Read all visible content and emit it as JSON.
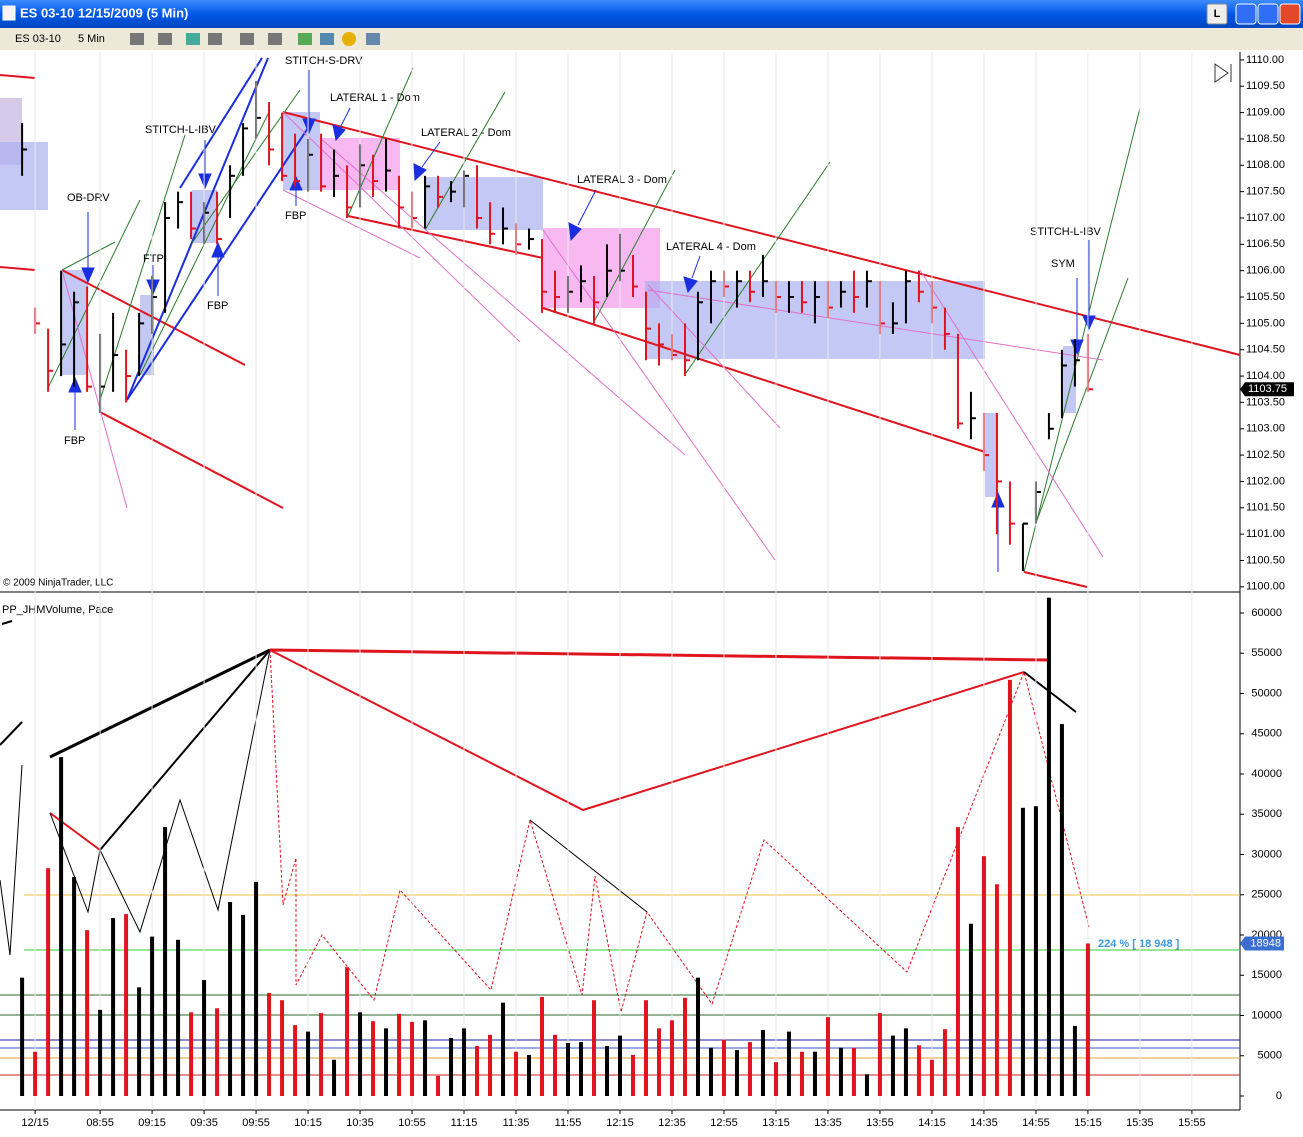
{
  "window": {
    "title": "ES 03-10  12/15/2009 (5 Min)",
    "button": "L"
  },
  "toolbar": {
    "instrument": "ES 03-10",
    "interval": "5 Min"
  },
  "chart_data": [
    {
      "type": "ohlc",
      "up_color": "#000000",
      "down_color": "#e0141e",
      "annotations": [
        "STITCH-S-DRV",
        "LATERAL 1 - Dom",
        "STITCH-L-IBV",
        "LATERAL 2 - Dom",
        "LATERAL 3 - Dom",
        "OB-DRV",
        "FBP",
        "STITCH-L-IBV",
        "LATERAL 4  - Dom",
        "FTP",
        "SYM",
        "FBP",
        "FBP",
        "© 2009 NinjaTrader, LLC"
      ],
      "x": [
        505,
        510,
        515,
        520,
        525,
        530,
        535,
        540,
        545,
        550,
        555,
        560,
        565,
        570,
        575,
        580,
        585,
        590,
        595,
        600,
        605,
        610,
        615,
        620,
        625,
        630,
        635,
        640,
        645,
        650,
        655,
        660,
        665,
        670,
        675,
        680,
        685,
        690,
        695,
        700,
        705,
        710,
        715,
        720,
        725,
        730,
        735,
        740,
        745,
        750,
        755,
        760,
        765,
        770,
        775,
        780,
        785,
        790,
        795,
        800,
        805,
        810,
        815,
        820,
        825,
        830,
        835,
        840,
        845,
        850,
        855,
        860,
        865,
        870,
        875,
        880,
        885,
        890,
        895,
        900,
        905,
        910,
        915
      ],
      "high": [
        1108.8,
        1105.3,
        1104.9,
        1106.0,
        1105.6,
        1105.7,
        1104.8,
        1105.2,
        1104.5,
        1105.2,
        1105.9,
        1107.3,
        1107.5,
        1107.5,
        1107.3,
        1107.5,
        1108.0,
        1108.8,
        1109.6,
        1109.2,
        1109.0,
        1108.6,
        1108.5,
        1108.6,
        1108.3,
        1108.0,
        1108.4,
        1108.2,
        1108.5,
        1107.8,
        1107.5,
        1107.8,
        1107.8,
        1107.7,
        1107.9,
        1108.0,
        1107.3,
        1107.2,
        1106.9,
        1106.8,
        1106.6,
        1106.0,
        1105.9,
        1106.1,
        1105.9,
        1106.5,
        1106.7,
        1106.3,
        1105.6,
        1105.0,
        1104.8,
        1105.0,
        1105.6,
        1106.0,
        1106.0,
        1106.0,
        1106.0,
        1106.3,
        1105.8,
        1105.8,
        1105.8,
        1105.8,
        1105.8,
        1105.8,
        1106.0,
        1106.0,
        1105.8,
        1105.4,
        1106.0,
        1106.0,
        1105.8,
        1105.3,
        1104.8,
        1103.7,
        1103.3,
        1103.3,
        1102.0,
        1101.2,
        1102.0,
        1103.3,
        1104.5,
        1104.7,
        1104.8
      ],
      "low": [
        1107.8,
        1104.8,
        1103.7,
        1104.0,
        1103.8,
        1103.7,
        1103.3,
        1103.7,
        1103.5,
        1104.0,
        1104.8,
        1105.2,
        1106.8,
        1106.6,
        1106.5,
        1106.5,
        1107.0,
        1107.8,
        1108.5,
        1108.0,
        1107.7,
        1107.6,
        1107.5,
        1107.5,
        1107.4,
        1107.0,
        1107.2,
        1107.4,
        1107.5,
        1106.8,
        1106.8,
        1106.8,
        1107.2,
        1107.3,
        1107.2,
        1106.8,
        1106.5,
        1106.5,
        1106.3,
        1106.4,
        1105.2,
        1105.2,
        1105.2,
        1105.4,
        1105.0,
        1105.5,
        1105.8,
        1105.5,
        1104.3,
        1104.2,
        1104.3,
        1104.0,
        1104.3,
        1105.0,
        1105.5,
        1105.3,
        1105.4,
        1105.5,
        1105.2,
        1105.2,
        1105.2,
        1105.0,
        1105.1,
        1105.3,
        1105.2,
        1105.3,
        1104.8,
        1104.8,
        1105.0,
        1105.4,
        1105.0,
        1104.5,
        1103.0,
        1102.8,
        1102.2,
        1101.0,
        1100.8,
        1100.3,
        1101.2,
        1102.8,
        1103.2,
        1103.8,
        1103.7
      ],
      "close": [
        1108.3,
        1105.0,
        1104.1,
        1104.6,
        1105.4,
        1103.8,
        1103.8,
        1104.4,
        1104.0,
        1105.0,
        1105.5,
        1107.0,
        1107.3,
        1106.8,
        1107.1,
        1106.6,
        1107.8,
        1108.7,
        1108.9,
        1108.3,
        1107.8,
        1107.7,
        1108.2,
        1107.6,
        1107.8,
        1107.2,
        1108.0,
        1107.7,
        1107.9,
        1107.2,
        1107.0,
        1107.6,
        1107.4,
        1107.5,
        1107.8,
        1107.0,
        1106.7,
        1106.8,
        1106.5,
        1106.6,
        1105.6,
        1105.5,
        1105.6,
        1105.8,
        1105.4,
        1106.0,
        1106.0,
        1105.7,
        1104.9,
        1104.6,
        1104.4,
        1104.3,
        1105.4,
        1105.8,
        1105.7,
        1105.8,
        1105.6,
        1105.8,
        1105.5,
        1105.5,
        1105.4,
        1105.5,
        1105.3,
        1105.6,
        1105.5,
        1105.8,
        1105.0,
        1105.0,
        1105.8,
        1105.6,
        1105.3,
        1104.8,
        1103.1,
        1103.2,
        1102.5,
        1102.0,
        1101.2,
        1101.2,
        1101.8,
        1103.0,
        1104.2,
        1104.3,
        1103.75
      ],
      "xlim": [
        496.5,
        973.5
      ],
      "ylim": [
        1099.94,
        1110.15
      ],
      "yticks": [
        {
          "value": 1100,
          "label": "1100.00"
        },
        {
          "value": 1100.5,
          "label": "1100.50"
        },
        {
          "value": 1101,
          "label": "1101.00"
        },
        {
          "value": 1101.5,
          "label": "1101.50"
        },
        {
          "value": 1102,
          "label": "1102.00"
        },
        {
          "value": 1102.5,
          "label": "1102.50"
        },
        {
          "value": 1103,
          "label": "1103.00"
        },
        {
          "value": 1103.5,
          "label": "1103.50"
        },
        {
          "value": 1104,
          "label": "1104.00"
        },
        {
          "value": 1104.5,
          "label": "1104.50"
        },
        {
          "value": 1105,
          "label": "1105.00"
        },
        {
          "value": 1105.5,
          "label": "1105.50"
        },
        {
          "value": 1106,
          "label": "1106.00"
        },
        {
          "value": 1106.5,
          "label": "1106.50"
        },
        {
          "value": 1107,
          "label": "1107.00"
        },
        {
          "value": 1107.5,
          "label": "1107.50"
        },
        {
          "value": 1108,
          "label": "1108.00"
        },
        {
          "value": 1108.5,
          "label": "1108.50"
        },
        {
          "value": 1109,
          "label": "1109.00"
        },
        {
          "value": 1109.5,
          "label": "1109.50"
        },
        {
          "value": 1110,
          "label": "1110.00"
        }
      ]
    },
    {
      "type": "bar",
      "title": "PP_JHMVolume, Pace",
      "annotation": "224 % [ 18 948 ]",
      "up_color": "#000000",
      "down_color": "#e0141e",
      "x": [
        505,
        510,
        515,
        520,
        525,
        530,
        535,
        540,
        545,
        550,
        555,
        560,
        565,
        570,
        575,
        580,
        585,
        590,
        595,
        600,
        605,
        610,
        615,
        620,
        625,
        630,
        635,
        640,
        645,
        650,
        655,
        660,
        665,
        670,
        675,
        680,
        685,
        690,
        695,
        700,
        705,
        710,
        715,
        720,
        725,
        730,
        735,
        740,
        745,
        750,
        755,
        760,
        765,
        770,
        775,
        780,
        785,
        790,
        795,
        800,
        805,
        810,
        815,
        820,
        825,
        830,
        835,
        840,
        845,
        850,
        855,
        860,
        865,
        870,
        875,
        880,
        885,
        890,
        895,
        900,
        905,
        910,
        915
      ],
      "values": [
        14700,
        5500,
        28300,
        42100,
        27200,
        20600,
        10700,
        22100,
        22600,
        13500,
        19800,
        33400,
        19400,
        10400,
        14400,
        10900,
        24100,
        22500,
        26600,
        12800,
        11900,
        8800,
        8000,
        10300,
        4500,
        16000,
        10400,
        9300,
        8400,
        10200,
        9200,
        9400,
        2500,
        7200,
        8400,
        6200,
        7600,
        11600,
        5500,
        5100,
        12300,
        7600,
        6600,
        6700,
        11900,
        6200,
        7500,
        5100,
        11900,
        8400,
        9400,
        12200,
        14700,
        6000,
        7000,
        5700,
        6700,
        8200,
        4200,
        8000,
        5500,
        5500,
        9800,
        6000,
        6000,
        2700,
        10300,
        7500,
        8400,
        6300,
        4500,
        8300,
        33400,
        21400,
        29800,
        26300,
        51700,
        35800,
        36000,
        61900,
        46200,
        8700,
        18948
      ],
      "xlim": [
        496.5,
        973.5
      ],
      "ylim": [
        -1491,
        62112
      ],
      "xticks": [
        {
          "value": 510,
          "label": "12/15"
        },
        {
          "value": 535,
          "label": "08:55"
        },
        {
          "value": 555,
          "label": "09:15"
        },
        {
          "value": 575,
          "label": "09:35"
        },
        {
          "value": 595,
          "label": "09:55"
        },
        {
          "value": 615,
          "label": "10:15"
        },
        {
          "value": 635,
          "label": "10:35"
        },
        {
          "value": 655,
          "label": "10:55"
        },
        {
          "value": 675,
          "label": "11:15"
        },
        {
          "value": 695,
          "label": "11:35"
        },
        {
          "value": 715,
          "label": "11:55"
        },
        {
          "value": 735,
          "label": "12:15"
        },
        {
          "value": 755,
          "label": "12:35"
        },
        {
          "value": 775,
          "label": "12:55"
        },
        {
          "value": 795,
          "label": "13:15"
        },
        {
          "value": 815,
          "label": "13:35"
        },
        {
          "value": 835,
          "label": "13:55"
        },
        {
          "value": 855,
          "label": "14:15"
        },
        {
          "value": 875,
          "label": "14:35"
        },
        {
          "value": 895,
          "label": "14:55"
        },
        {
          "value": 915,
          "label": "15:15"
        },
        {
          "value": 935,
          "label": "15:35"
        },
        {
          "value": 955,
          "label": "15:55"
        }
      ],
      "yticks": [
        0,
        5000,
        10000,
        15000,
        20000,
        25000,
        30000,
        35000,
        40000,
        45000,
        50000,
        55000,
        60000
      ]
    }
  ]
}
